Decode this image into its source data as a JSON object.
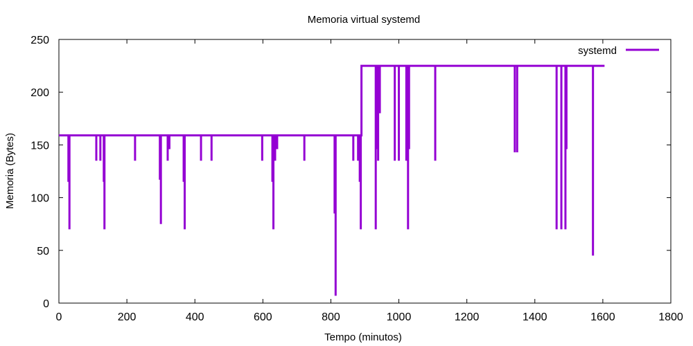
{
  "chart_data": {
    "type": "line",
    "title": "Memoria virtual systemd",
    "xlabel": "Tempo (minutos)",
    "ylabel": "Memoria (Bytes)",
    "xlim": [
      0,
      1800
    ],
    "ylim": [
      0,
      250
    ],
    "x_ticks": [
      "0",
      "200",
      "400",
      "600",
      "800",
      "1000",
      "1200",
      "1400",
      "1600",
      "1800"
    ],
    "y_ticks": [
      "0",
      "50",
      "100",
      "150",
      "200",
      "250"
    ],
    "grid": false,
    "legend_position": "top-right",
    "series": [
      {
        "name": "systemd",
        "color": "#9400d3",
        "x_start": 0,
        "x_end": 1605,
        "step": {
          "x": 890,
          "from": 159,
          "to": 225
        },
        "dips": [
          {
            "x": 28,
            "min": 115
          },
          {
            "x": 31,
            "min": 70
          },
          {
            "x": 110,
            "min": 135
          },
          {
            "x": 122,
            "min": 135
          },
          {
            "x": 132,
            "min": 115
          },
          {
            "x": 134,
            "min": 70
          },
          {
            "x": 224,
            "min": 135
          },
          {
            "x": 297,
            "min": 117
          },
          {
            "x": 300,
            "min": 75
          },
          {
            "x": 320,
            "min": 135
          },
          {
            "x": 325,
            "min": 146
          },
          {
            "x": 367,
            "min": 115
          },
          {
            "x": 370,
            "min": 70
          },
          {
            "x": 418,
            "min": 135
          },
          {
            "x": 449,
            "min": 135
          },
          {
            "x": 598,
            "min": 135
          },
          {
            "x": 628,
            "min": 115
          },
          {
            "x": 631,
            "min": 70
          },
          {
            "x": 636,
            "min": 135
          },
          {
            "x": 642,
            "min": 146
          },
          {
            "x": 722,
            "min": 135
          },
          {
            "x": 811,
            "min": 85
          },
          {
            "x": 814,
            "min": 7
          },
          {
            "x": 866,
            "min": 135
          },
          {
            "x": 880,
            "min": 135
          },
          {
            "x": 885,
            "min": 115
          },
          {
            "x": 888,
            "min": 70
          },
          {
            "x": 932,
            "min": 70
          },
          {
            "x": 935,
            "min": 146
          },
          {
            "x": 939,
            "min": 135
          },
          {
            "x": 944,
            "min": 180
          },
          {
            "x": 988,
            "min": 135
          },
          {
            "x": 1000,
            "min": 135
          },
          {
            "x": 1022,
            "min": 135
          },
          {
            "x": 1027,
            "min": 70
          },
          {
            "x": 1030,
            "min": 146
          },
          {
            "x": 1107,
            "min": 135
          },
          {
            "x": 1341,
            "min": 143
          },
          {
            "x": 1348,
            "min": 143
          },
          {
            "x": 1464,
            "min": 70
          },
          {
            "x": 1478,
            "min": 70
          },
          {
            "x": 1490,
            "min": 70
          },
          {
            "x": 1493,
            "min": 146
          },
          {
            "x": 1571,
            "min": 45
          }
        ]
      }
    ]
  }
}
